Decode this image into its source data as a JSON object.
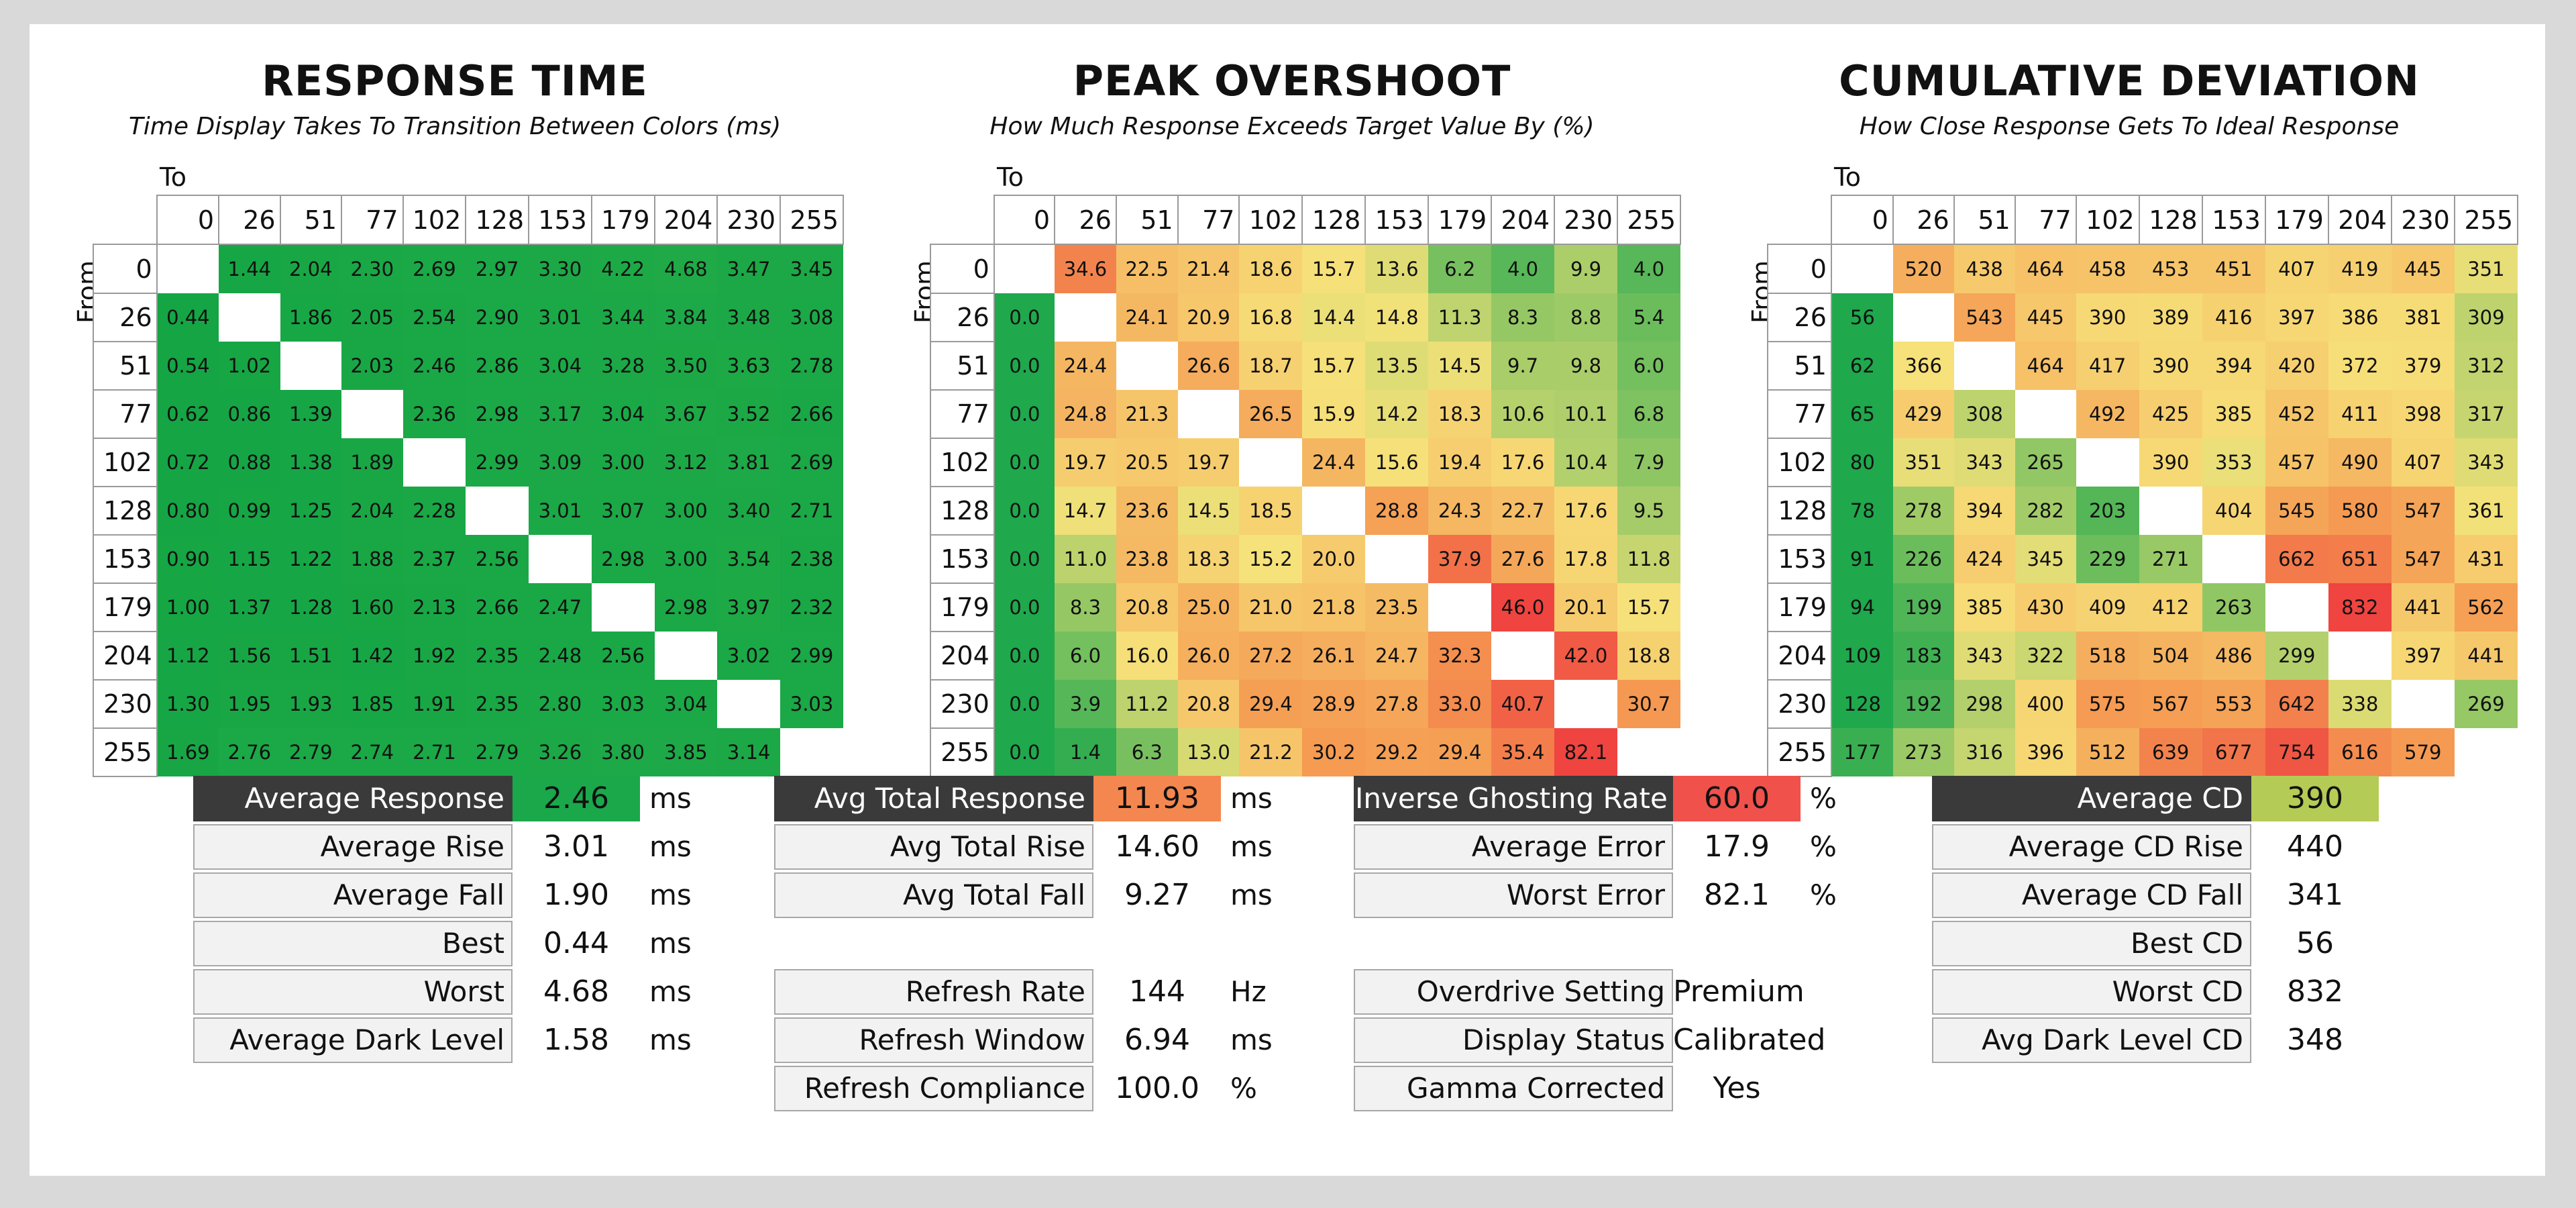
{
  "chart_data": [
    {
      "type": "heatmap",
      "title": "RESPONSE TIME",
      "subtitle": "Time Display Takes To Transition Between Colors (ms)",
      "xlabel": "To",
      "ylabel": "From",
      "levels": [
        0,
        26,
        51,
        77,
        102,
        128,
        153,
        179,
        204,
        230,
        255
      ],
      "values": [
        [
          null,
          1.44,
          2.04,
          2.3,
          2.69,
          2.97,
          3.3,
          4.22,
          4.68,
          3.47,
          3.45
        ],
        [
          0.44,
          null,
          1.86,
          2.05,
          2.54,
          2.9,
          3.01,
          3.44,
          3.84,
          3.48,
          3.08
        ],
        [
          0.54,
          1.02,
          null,
          2.03,
          2.46,
          2.86,
          3.04,
          3.28,
          3.5,
          3.63,
          2.78
        ],
        [
          0.62,
          0.86,
          1.39,
          null,
          2.36,
          2.98,
          3.17,
          3.04,
          3.67,
          3.52,
          2.66
        ],
        [
          0.72,
          0.88,
          1.38,
          1.89,
          null,
          2.99,
          3.09,
          3.0,
          3.12,
          3.81,
          2.69
        ],
        [
          0.8,
          0.99,
          1.25,
          2.04,
          2.28,
          null,
          3.01,
          3.07,
          3.0,
          3.4,
          2.71
        ],
        [
          0.9,
          1.15,
          1.22,
          1.88,
          2.37,
          2.56,
          null,
          2.98,
          3.0,
          3.54,
          2.38
        ],
        [
          1.0,
          1.37,
          1.28,
          1.6,
          2.13,
          2.66,
          2.47,
          null,
          2.98,
          3.97,
          2.32
        ],
        [
          1.12,
          1.56,
          1.51,
          1.42,
          1.92,
          2.35,
          2.48,
          2.56,
          null,
          3.02,
          2.99
        ],
        [
          1.3,
          1.95,
          1.93,
          1.85,
          1.91,
          2.35,
          2.8,
          3.03,
          3.04,
          null,
          3.03
        ],
        [
          1.69,
          2.76,
          2.79,
          2.74,
          2.71,
          2.79,
          3.26,
          3.8,
          3.85,
          3.14,
          null
        ]
      ],
      "decimals": 2,
      "color_scale": "green"
    },
    {
      "type": "heatmap",
      "title": "PEAK OVERSHOOT",
      "subtitle": "How Much Response Exceeds Target Value By (%)",
      "xlabel": "To",
      "ylabel": "From",
      "levels": [
        0,
        26,
        51,
        77,
        102,
        128,
        153,
        179,
        204,
        230,
        255
      ],
      "values": [
        [
          null,
          34.6,
          22.5,
          21.4,
          18.6,
          15.7,
          13.6,
          6.2,
          4.0,
          9.9,
          4.0
        ],
        [
          0.0,
          null,
          24.1,
          20.9,
          16.8,
          14.4,
          14.8,
          11.3,
          8.3,
          8.8,
          5.4
        ],
        [
          0.0,
          24.4,
          null,
          26.6,
          18.7,
          15.7,
          13.5,
          14.5,
          9.7,
          9.8,
          6.0
        ],
        [
          0.0,
          24.8,
          21.3,
          null,
          26.5,
          15.9,
          14.2,
          18.3,
          10.6,
          10.1,
          6.8
        ],
        [
          0.0,
          19.7,
          20.5,
          19.7,
          null,
          24.4,
          15.6,
          19.4,
          17.6,
          10.4,
          7.9
        ],
        [
          0.0,
          14.7,
          23.6,
          14.5,
          18.5,
          null,
          28.8,
          24.3,
          22.7,
          17.6,
          9.5
        ],
        [
          0.0,
          11.0,
          23.8,
          18.3,
          15.2,
          20.0,
          null,
          37.9,
          27.6,
          17.8,
          11.8
        ],
        [
          0.0,
          8.3,
          20.8,
          25.0,
          21.0,
          21.8,
          23.5,
          null,
          46.0,
          20.1,
          15.7
        ],
        [
          0.0,
          6.0,
          16.0,
          26.0,
          27.2,
          26.1,
          24.7,
          32.3,
          null,
          42.0,
          18.8
        ],
        [
          0.0,
          3.9,
          11.2,
          20.8,
          29.4,
          28.9,
          27.8,
          33.0,
          40.7,
          null,
          30.7
        ],
        [
          0.0,
          1.4,
          6.3,
          13.0,
          21.2,
          30.2,
          29.2,
          29.4,
          35.4,
          82.1,
          null
        ]
      ],
      "decimals": 1,
      "color_scale": "green-yellow-red"
    },
    {
      "type": "heatmap",
      "title": "CUMULATIVE DEVIATION",
      "subtitle": "How Close Response Gets To Ideal Response",
      "xlabel": "To",
      "ylabel": "From",
      "levels": [
        0,
        26,
        51,
        77,
        102,
        128,
        153,
        179,
        204,
        230,
        255
      ],
      "values": [
        [
          null,
          520,
          438,
          464,
          458,
          453,
          451,
          407,
          419,
          445,
          351
        ],
        [
          56,
          null,
          543,
          445,
          390,
          389,
          416,
          397,
          386,
          381,
          309
        ],
        [
          62,
          366,
          null,
          464,
          417,
          390,
          394,
          420,
          372,
          379,
          312
        ],
        [
          65,
          429,
          308,
          null,
          492,
          425,
          385,
          452,
          411,
          398,
          317
        ],
        [
          80,
          351,
          343,
          265,
          null,
          390,
          353,
          457,
          490,
          407,
          343
        ],
        [
          78,
          278,
          394,
          282,
          203,
          null,
          404,
          545,
          580,
          547,
          361
        ],
        [
          91,
          226,
          424,
          345,
          229,
          271,
          null,
          662,
          651,
          547,
          431
        ],
        [
          94,
          199,
          385,
          430,
          409,
          412,
          263,
          null,
          832,
          441,
          562
        ],
        [
          109,
          183,
          343,
          322,
          518,
          504,
          486,
          299,
          null,
          397,
          441
        ],
        [
          128,
          192,
          298,
          400,
          575,
          567,
          553,
          642,
          338,
          null,
          269
        ],
        [
          177,
          273,
          316,
          396,
          512,
          639,
          677,
          754,
          616,
          579,
          null
        ]
      ],
      "decimals": 0,
      "color_scale": "green-yellow-red"
    }
  ],
  "stats": {
    "response": [
      {
        "label": "Average Response",
        "value": "2.46",
        "unit": "ms",
        "highlight": "#1aa84a",
        "dark": true
      },
      {
        "label": "Average Rise",
        "value": "3.01",
        "unit": "ms"
      },
      {
        "label": "Average Fall",
        "value": "1.90",
        "unit": "ms"
      },
      {
        "label": "Best",
        "value": "0.44",
        "unit": "ms"
      },
      {
        "label": "Worst",
        "value": "4.68",
        "unit": "ms"
      },
      {
        "label": "Average Dark Level",
        "value": "1.58",
        "unit": "ms"
      }
    ],
    "total": [
      {
        "label": "Avg Total Response",
        "value": "11.93",
        "unit": "ms",
        "highlight": "#f4874f",
        "dark": true
      },
      {
        "label": "Avg Total Rise",
        "value": "14.60",
        "unit": "ms"
      },
      {
        "label": "Avg Total Fall",
        "value": "9.27",
        "unit": "ms"
      }
    ],
    "refresh": [
      {
        "label": "Refresh Rate",
        "value": "144",
        "unit": "Hz"
      },
      {
        "label": "Refresh Window",
        "value": "6.94",
        "unit": "ms"
      },
      {
        "label": "Refresh Compliance",
        "value": "100.0",
        "unit": "%"
      }
    ],
    "ghosting": [
      {
        "label": "Inverse Ghosting Rate",
        "value": "60.0",
        "unit": "%",
        "highlight": "#f0514b",
        "dark": true
      },
      {
        "label": "Average Error",
        "value": "17.9",
        "unit": "%"
      },
      {
        "label": "Worst Error",
        "value": "82.1",
        "unit": "%"
      }
    ],
    "settings": [
      {
        "label": "Overdrive Setting",
        "value": "Premium",
        "unit": ""
      },
      {
        "label": "Display Status",
        "value": "Calibrated",
        "unit": ""
      },
      {
        "label": "Gamma Corrected",
        "value": "Yes",
        "unit": ""
      }
    ],
    "cd": [
      {
        "label": "Average CD",
        "value": "390",
        "unit": "",
        "highlight": "#b4cb55",
        "dark": true
      },
      {
        "label": "Average CD Rise",
        "value": "440",
        "unit": ""
      },
      {
        "label": "Average CD Fall",
        "value": "341",
        "unit": ""
      },
      {
        "label": "Best CD",
        "value": "56",
        "unit": ""
      },
      {
        "label": "Worst CD",
        "value": "832",
        "unit": ""
      },
      {
        "label": "Avg Dark Level CD",
        "value": "348",
        "unit": ""
      }
    ]
  }
}
